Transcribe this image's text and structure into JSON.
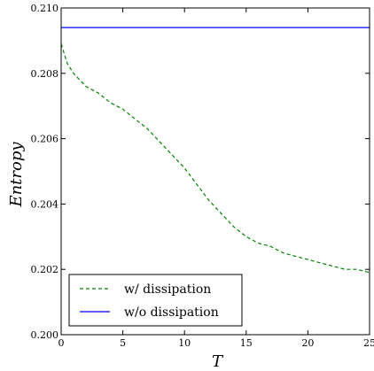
{
  "chart_data": {
    "type": "line",
    "xlabel": "T",
    "ylabel": "Entropy",
    "xlim": [
      0,
      25
    ],
    "ylim": [
      0.2,
      0.21
    ],
    "x_ticks": [
      0,
      5,
      10,
      15,
      20,
      25
    ],
    "x_tick_labels": [
      "0",
      "5",
      "10",
      "15",
      "20",
      "25"
    ],
    "y_ticks": [
      0.2,
      0.202,
      0.204,
      0.206,
      0.208,
      0.21
    ],
    "y_tick_labels": [
      "0.200",
      "0.202",
      "0.204",
      "0.206",
      "0.208",
      "0.210"
    ],
    "grid": false,
    "legend_position": "lower-left",
    "series": [
      {
        "name": "w/ dissipation",
        "color": "#008000",
        "dash": "dashed",
        "x": [
          0,
          0.5,
          1,
          1.5,
          2,
          3,
          4,
          5,
          6,
          7,
          8,
          9,
          10,
          11,
          12,
          13,
          14,
          15,
          16,
          17,
          18,
          19,
          20,
          21,
          22,
          23,
          24,
          25
        ],
        "y": [
          0.2089,
          0.2083,
          0.208,
          0.2078,
          0.2076,
          0.2074,
          0.2071,
          0.2069,
          0.2066,
          0.2063,
          0.2059,
          0.2055,
          0.2051,
          0.2046,
          0.2041,
          0.2037,
          0.2033,
          0.203,
          0.2028,
          0.2027,
          0.2025,
          0.2024,
          0.2023,
          0.2022,
          0.2021,
          0.202,
          0.202,
          0.2019
        ]
      },
      {
        "name": "w/o dissipation",
        "color": "#0000ff",
        "dash": "solid",
        "x": [
          0,
          25
        ],
        "y": [
          0.2094,
          0.2094
        ]
      }
    ]
  }
}
